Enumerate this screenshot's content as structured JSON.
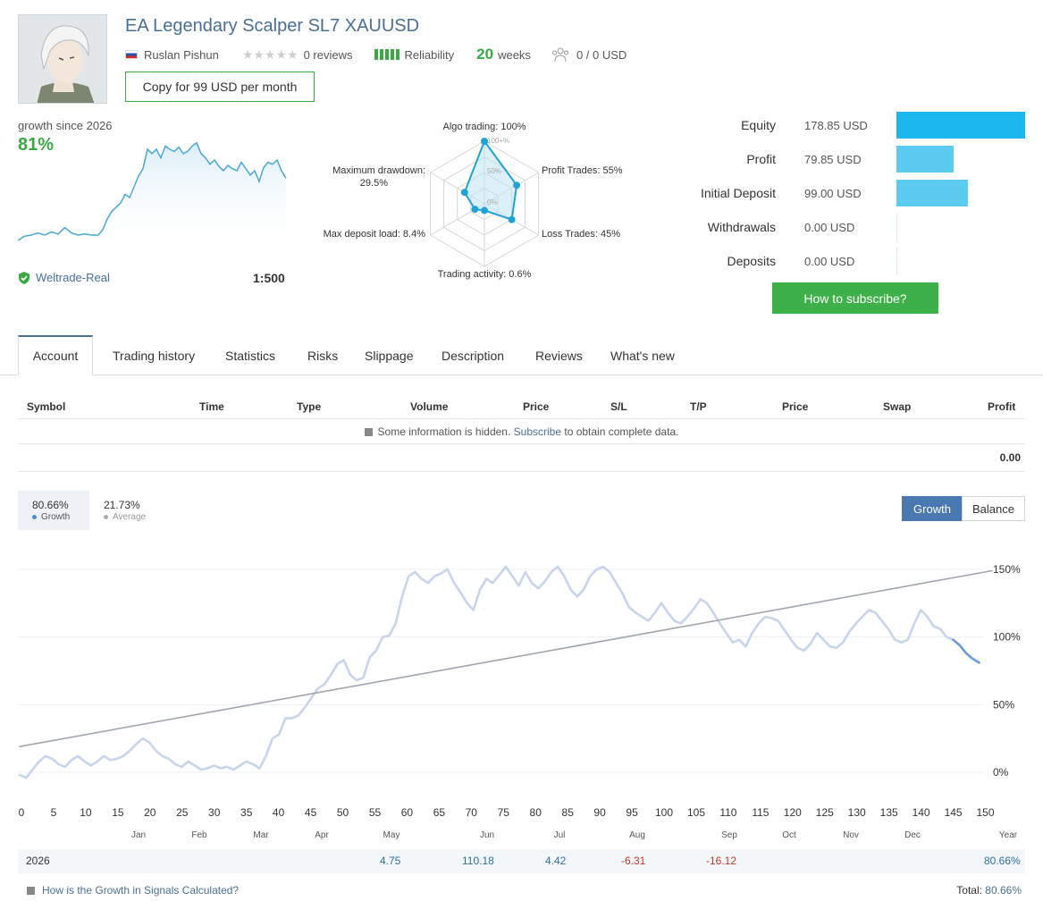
{
  "header": {
    "title": "EA Legendary Scalper SL7 XAUUSD",
    "author": "Ruslan Pishun",
    "reviews": "0 reviews",
    "reliability": "Reliability",
    "weeks_num": "20",
    "weeks_label": "weeks",
    "subscribers": "0 / 0 USD",
    "copy_button": "Copy for 99 USD per month"
  },
  "summary": {
    "growth_label": "growth since 2026",
    "growth_value": "81%",
    "broker": "Weltrade-Real",
    "leverage": "1:500"
  },
  "radar": {
    "labels": {
      "algo": "Algo trading: 100%",
      "profit": "Profit Trades: 55%",
      "loss": "Loss Trades: 45%",
      "activity": "Trading activity: 0.6%",
      "deposit_load": "Max deposit load: 8.4%",
      "drawdown_line1": "Maximum drawdown:",
      "drawdown_line2": "29.5%",
      "ring_100": "100+%",
      "ring_50": "50%",
      "ring_0": "0%"
    },
    "values": [
      1.0,
      0.55,
      0.45,
      0.006,
      0.084,
      0.295
    ]
  },
  "equity": {
    "rows": [
      {
        "label": "Equity",
        "value": "178.85 USD",
        "amount": 178.85
      },
      {
        "label": "Profit",
        "value": "79.85 USD",
        "amount": 79.85
      },
      {
        "label": "Initial Deposit",
        "value": "99.00 USD",
        "amount": 99.0
      },
      {
        "label": "Withdrawals",
        "value": "0.00 USD",
        "amount": 0
      },
      {
        "label": "Deposits",
        "value": "0.00 USD",
        "amount": 0
      }
    ],
    "bar_colors": [
      "#1ab8ee",
      "#5ccbf1",
      "#5ccbf1"
    ],
    "subscribe_button": "How to subscribe?"
  },
  "tabs": [
    "Account",
    "Trading history",
    "Statistics",
    "Risks",
    "Slippage",
    "Description",
    "Reviews",
    "What's new"
  ],
  "table": {
    "headers": [
      "Symbol",
      "Time",
      "Type",
      "Volume",
      "Price",
      "S/L",
      "T/P",
      "Price",
      "Swap",
      "Profit"
    ],
    "hidden_prefix": "Some information is hidden.",
    "hidden_link": "Subscribe",
    "hidden_suffix": "to obtain complete data.",
    "total_profit": "0.00"
  },
  "growth_chart": {
    "growth_value": "80.66%",
    "growth_label": "Growth",
    "average_value": "21.73%",
    "average_label": "Average",
    "btn_growth": "Growth",
    "btn_balance": "Balance"
  },
  "chart_data": {
    "type": "line",
    "x_ticks": [
      "0",
      "5",
      "10",
      "15",
      "20",
      "25",
      "30",
      "35",
      "40",
      "45",
      "50",
      "55",
      "60",
      "65",
      "70",
      "75",
      "80",
      "85",
      "90",
      "95",
      "100",
      "105",
      "110",
      "115",
      "120",
      "125",
      "130",
      "135",
      "140",
      "145",
      "150"
    ],
    "y_ticks": [
      "0%",
      "50%",
      "100%",
      "150%"
    ],
    "months": [
      "Jan",
      "Feb",
      "Mar",
      "Apr",
      "May",
      "Jun",
      "Jul",
      "Aug",
      "Sep",
      "Oct",
      "Nov",
      "Dec",
      "Year"
    ],
    "ylim": [
      -10,
      155
    ],
    "xlim": [
      0,
      150
    ],
    "series": [
      {
        "color": "#c7d4ea",
        "points": [
          [
            0,
            -2
          ],
          [
            1,
            -4
          ],
          [
            2,
            2
          ],
          [
            3,
            8
          ],
          [
            4,
            12
          ],
          [
            5,
            10
          ],
          [
            6,
            6
          ],
          [
            7,
            4
          ],
          [
            8,
            9
          ],
          [
            9,
            12
          ],
          [
            10,
            8
          ],
          [
            11,
            5
          ],
          [
            12,
            8
          ],
          [
            13,
            12
          ],
          [
            14,
            9
          ],
          [
            15,
            10
          ],
          [
            16,
            12
          ],
          [
            17,
            16
          ],
          [
            18,
            21
          ],
          [
            19,
            25
          ],
          [
            20,
            22
          ],
          [
            21,
            16
          ],
          [
            22,
            12
          ],
          [
            23,
            10
          ],
          [
            24,
            6
          ],
          [
            25,
            4
          ],
          [
            26,
            8
          ],
          [
            27,
            5
          ],
          [
            28,
            2
          ],
          [
            29,
            3
          ],
          [
            30,
            5
          ],
          [
            31,
            3
          ],
          [
            32,
            4
          ],
          [
            33,
            2
          ],
          [
            34,
            5
          ],
          [
            35,
            8
          ],
          [
            36,
            6
          ],
          [
            37,
            3
          ],
          [
            38,
            12
          ],
          [
            39,
            25
          ],
          [
            40,
            28
          ],
          [
            41,
            40
          ],
          [
            42,
            40
          ],
          [
            43,
            42
          ],
          [
            44,
            48
          ],
          [
            45,
            55
          ],
          [
            46,
            62
          ],
          [
            47,
            65
          ],
          [
            48,
            72
          ],
          [
            49,
            80
          ],
          [
            50,
            83
          ],
          [
            51,
            72
          ],
          [
            52,
            68
          ],
          [
            53,
            70
          ],
          [
            54,
            85
          ],
          [
            55,
            90
          ],
          [
            56,
            100
          ],
          [
            57,
            101
          ],
          [
            58,
            110
          ],
          [
            59,
            130
          ],
          [
            60,
            145
          ],
          [
            61,
            148
          ],
          [
            62,
            143
          ],
          [
            63,
            140
          ],
          [
            64,
            145
          ],
          [
            65,
            147
          ],
          [
            66,
            150
          ],
          [
            67,
            140
          ],
          [
            68,
            133
          ],
          [
            69,
            125
          ],
          [
            70,
            120
          ],
          [
            71,
            135
          ],
          [
            72,
            143
          ],
          [
            73,
            140
          ],
          [
            74,
            146
          ],
          [
            75,
            152
          ],
          [
            76,
            145
          ],
          [
            77,
            138
          ],
          [
            78,
            148
          ],
          [
            79,
            140
          ],
          [
            80,
            136
          ],
          [
            81,
            141
          ],
          [
            82,
            148
          ],
          [
            83,
            152
          ],
          [
            84,
            145
          ],
          [
            85,
            135
          ],
          [
            86,
            130
          ],
          [
            87,
            135
          ],
          [
            88,
            145
          ],
          [
            89,
            150
          ],
          [
            90,
            152
          ],
          [
            91,
            148
          ],
          [
            92,
            140
          ],
          [
            93,
            132
          ],
          [
            94,
            122
          ],
          [
            95,
            118
          ],
          [
            96,
            115
          ],
          [
            97,
            112
          ],
          [
            98,
            118
          ],
          [
            99,
            125
          ],
          [
            100,
            118
          ],
          [
            101,
            112
          ],
          [
            102,
            110
          ],
          [
            103,
            115
          ],
          [
            104,
            121
          ],
          [
            105,
            128
          ],
          [
            106,
            125
          ],
          [
            107,
            118
          ],
          [
            108,
            110
          ],
          [
            109,
            103
          ],
          [
            110,
            96
          ],
          [
            111,
            98
          ],
          [
            112,
            93
          ],
          [
            113,
            103
          ],
          [
            114,
            110
          ],
          [
            115,
            115
          ],
          [
            116,
            114
          ],
          [
            117,
            112
          ],
          [
            118,
            105
          ],
          [
            119,
            98
          ],
          [
            120,
            92
          ],
          [
            121,
            90
          ],
          [
            122,
            95
          ],
          [
            123,
            103
          ],
          [
            124,
            98
          ],
          [
            125,
            93
          ],
          [
            126,
            92
          ],
          [
            127,
            96
          ],
          [
            128,
            104
          ],
          [
            129,
            110
          ],
          [
            130,
            115
          ],
          [
            131,
            120
          ],
          [
            132,
            118
          ],
          [
            133,
            112
          ],
          [
            134,
            106
          ],
          [
            135,
            98
          ],
          [
            136,
            96
          ],
          [
            137,
            98
          ],
          [
            138,
            110
          ],
          [
            139,
            120
          ],
          [
            140,
            115
          ],
          [
            141,
            108
          ],
          [
            142,
            106
          ],
          [
            143,
            100
          ],
          [
            144,
            98
          ]
        ]
      },
      {
        "color": "#6a9bd3",
        "points": [
          [
            144,
            98
          ],
          [
            145,
            94
          ],
          [
            146,
            88
          ],
          [
            147,
            84
          ],
          [
            148,
            81
          ]
        ]
      },
      {
        "color": "#a0a6ad",
        "points": [
          [
            0,
            19
          ],
          [
            150,
            149
          ]
        ]
      }
    ]
  },
  "year_row": {
    "year": "2026",
    "cells": [
      {
        "value": "4.75",
        "color": "#2e6fa8"
      },
      {
        "value": "110.18",
        "color": "#2e6fa8"
      },
      {
        "value": "4.42",
        "color": "#2e6fa8"
      },
      {
        "value": "-6.31",
        "color": "#c0392b"
      },
      {
        "value": "-16.12",
        "color": "#c0392b"
      }
    ],
    "total": "80.66%"
  },
  "footer": {
    "link": "How is the Growth in Signals Calculated?",
    "total_label": "Total:",
    "total_value": "80.66%"
  },
  "mini_chart": {
    "points": [
      [
        0,
        0.05
      ],
      [
        3,
        0.09
      ],
      [
        6,
        0.1
      ],
      [
        9,
        0.12
      ],
      [
        12,
        0.1
      ],
      [
        15,
        0.13
      ],
      [
        18,
        0.11
      ],
      [
        21,
        0.17
      ],
      [
        24,
        0.12
      ],
      [
        27,
        0.1
      ],
      [
        30,
        0.11
      ],
      [
        33,
        0.1
      ],
      [
        36,
        0.1
      ],
      [
        38,
        0.15
      ],
      [
        40,
        0.25
      ],
      [
        42,
        0.32
      ],
      [
        44,
        0.36
      ],
      [
        46,
        0.4
      ],
      [
        48,
        0.48
      ],
      [
        50,
        0.45
      ],
      [
        52,
        0.55
      ],
      [
        54,
        0.65
      ],
      [
        56,
        0.72
      ],
      [
        58,
        0.9
      ],
      [
        60,
        0.86
      ],
      [
        62,
        0.9
      ],
      [
        64,
        0.82
      ],
      [
        66,
        0.93
      ],
      [
        68,
        0.9
      ],
      [
        70,
        0.88
      ],
      [
        72,
        0.92
      ],
      [
        74,
        0.86
      ],
      [
        76,
        0.88
      ],
      [
        78,
        0.93
      ],
      [
        80,
        0.96
      ],
      [
        82,
        0.86
      ],
      [
        84,
        0.82
      ],
      [
        86,
        0.76
      ],
      [
        88,
        0.8
      ],
      [
        90,
        0.74
      ],
      [
        92,
        0.7
      ],
      [
        94,
        0.75
      ],
      [
        96,
        0.72
      ],
      [
        98,
        0.7
      ],
      [
        100,
        0.78
      ],
      [
        102,
        0.72
      ],
      [
        104,
        0.66
      ],
      [
        106,
        0.7
      ],
      [
        108,
        0.6
      ],
      [
        110,
        0.73
      ],
      [
        112,
        0.78
      ],
      [
        114,
        0.76
      ],
      [
        116,
        0.8
      ],
      [
        118,
        0.7
      ],
      [
        120,
        0.63
      ]
    ]
  }
}
